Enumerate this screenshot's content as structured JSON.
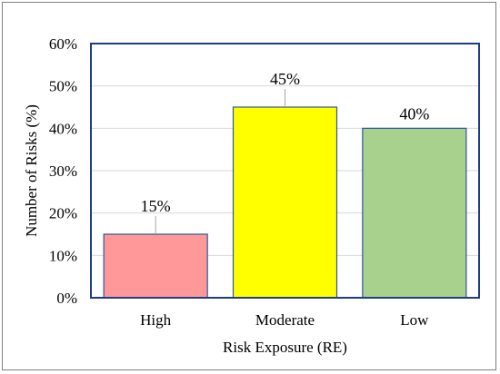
{
  "chart_data": {
    "type": "bar",
    "title": "",
    "xlabel": "Risk Exposure (RE)",
    "ylabel": "Number of Risks (%)",
    "categories": [
      "High",
      "Moderate",
      "Low"
    ],
    "values": [
      15,
      45,
      40
    ],
    "data_labels": [
      "15%",
      "45%",
      "40%"
    ],
    "colors": [
      "#ff9999",
      "#ffff00",
      "#a9d18e"
    ],
    "bar_border_color": "#2f5597",
    "ylim": [
      0,
      60
    ],
    "yticks": [
      0,
      10,
      20,
      30,
      40,
      50,
      60
    ],
    "ytick_labels": [
      "0%",
      "10%",
      "20%",
      "30%",
      "40%",
      "50%",
      "60%"
    ],
    "grid": true,
    "legend": "none"
  }
}
